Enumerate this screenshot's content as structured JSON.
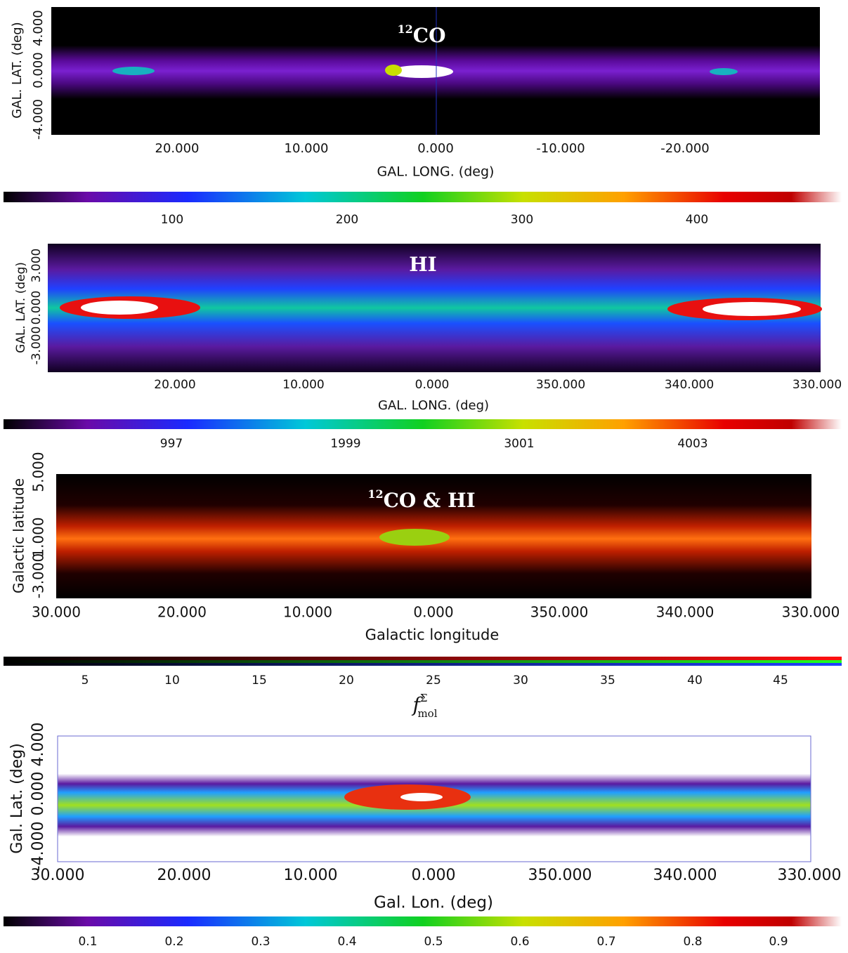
{
  "panels": [
    {
      "title": {
        "superscript": "12",
        "text": "CO"
      },
      "y_label": "GAL. LAT. (deg)",
      "y_ticks": [
        "4.000",
        "0.000",
        "-4.000"
      ],
      "x_ticks": [
        "20.000",
        "10.000",
        "0.000",
        "-10.000",
        "-20.000"
      ],
      "x_label": "GAL. LONG. (deg)",
      "colorbar_ticks": [
        "100",
        "200",
        "300",
        "400"
      ]
    },
    {
      "title": {
        "text": "HI"
      },
      "y_label": "GAL. LAT. (deg)",
      "y_ticks": [
        "3.000",
        "0.000",
        "-3.000"
      ],
      "x_ticks": [
        "20.000",
        "10.000",
        "0.000",
        "350.000",
        "340.000",
        "330.000"
      ],
      "x_label": "GAL. LONG. (deg)",
      "colorbar_ticks": [
        "997",
        "1999",
        "3001",
        "4003"
      ]
    },
    {
      "title": {
        "superscript": "12",
        "text": "CO & HI"
      },
      "y_label": "Galactic latitude",
      "y_ticks": [
        "5.000",
        "1.000",
        "-3.000"
      ],
      "x_ticks": [
        "30.000",
        "20.000",
        "10.000",
        "0.000",
        "350.000",
        "340.000",
        "330.000"
      ],
      "x_label": "Galactic longitude",
      "colorbar_ticks": [
        "5",
        "10",
        "15",
        "20",
        "25",
        "30",
        "35",
        "40",
        "45"
      ]
    },
    {
      "title": {
        "text": "f",
        "superscript": "Σ",
        "subscript": "mol"
      },
      "y_label": "Gal. Lat. (deg)",
      "y_ticks": [
        "4.000",
        "0.000",
        "-4.000"
      ],
      "x_ticks": [
        "30.000",
        "20.000",
        "10.000",
        "0.000",
        "350.000",
        "340.000",
        "330.000"
      ],
      "x_label": "Gal.  Lon. (deg)",
      "colorbar_ticks": [
        "0.1",
        "0.2",
        "0.3",
        "0.4",
        "0.5",
        "0.6",
        "0.7",
        "0.8",
        "0.9"
      ]
    }
  ]
}
